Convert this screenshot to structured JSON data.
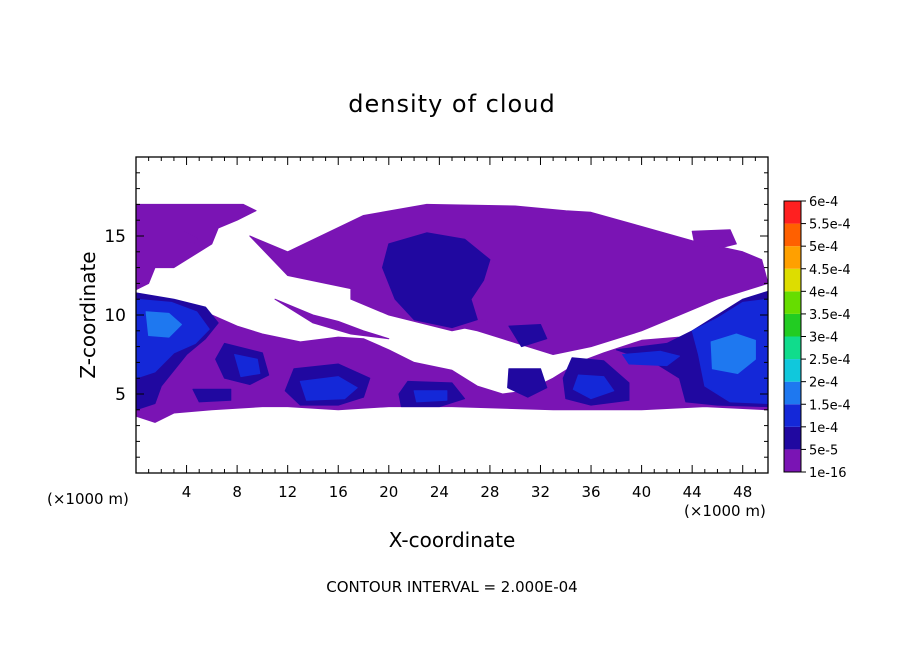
{
  "chart_data": {
    "type": "heatmap",
    "title": "density of cloud",
    "xlabel": "X-coordinate",
    "ylabel": "Z-coordinate",
    "x_unit": "(×1000 m)",
    "z_unit": "(×1000 m)",
    "xlim": [
      0,
      50
    ],
    "ylim": [
      0,
      20
    ],
    "x_ticks": [
      4,
      8,
      12,
      16,
      20,
      24,
      28,
      32,
      36,
      40,
      44,
      48
    ],
    "x_tick_labels": [
      "4",
      "8",
      "12",
      "16",
      "20",
      "24",
      "28",
      "32",
      "36",
      "40",
      "44",
      "48"
    ],
    "y_ticks": [
      5,
      10,
      15
    ],
    "y_tick_labels": [
      "5",
      "10",
      "15"
    ],
    "footer": "CONTOUR INTERVAL = 2.000E-04",
    "colorbar": {
      "levels": [
        "1e-16",
        "5e-5",
        "1e-4",
        "1.5e-4",
        "2e-4",
        "2.5e-4",
        "3e-4",
        "3.5e-4",
        "4e-4",
        "4.5e-4",
        "5e-4",
        "5.5e-4",
        "6e-4"
      ],
      "colors": [
        "#7a14b4",
        "#2008a0",
        "#1428d8",
        "#1e78f0",
        "#10c8dc",
        "#10dc8c",
        "#22cc22",
        "#66dd00",
        "#dddd00",
        "#ffa000",
        "#ff6000",
        "#ff2020",
        "#ff8080"
      ]
    },
    "regions": [
      {
        "level": 0,
        "points": [
          [
            0,
            17
          ],
          [
            8.5,
            17
          ],
          [
            9.5,
            16.6
          ],
          [
            8,
            16
          ],
          [
            6.5,
            15.5
          ],
          [
            6,
            14.5
          ],
          [
            5,
            14
          ],
          [
            3,
            13
          ],
          [
            1.5,
            13
          ],
          [
            1,
            12
          ],
          [
            0,
            11.6
          ]
        ]
      },
      {
        "level": 0,
        "points": [
          [
            9,
            15
          ],
          [
            12,
            14
          ],
          [
            18,
            16.3
          ],
          [
            23,
            17
          ],
          [
            30,
            16.9
          ],
          [
            34,
            16.6
          ],
          [
            36,
            16.5
          ],
          [
            40,
            15.6
          ],
          [
            44,
            14.7
          ],
          [
            48,
            14
          ],
          [
            49.5,
            13.5
          ],
          [
            50,
            12
          ],
          [
            46,
            11
          ],
          [
            43,
            10
          ],
          [
            40,
            9
          ],
          [
            36,
            8
          ],
          [
            33,
            7.5
          ],
          [
            31,
            8
          ],
          [
            29,
            8.5
          ],
          [
            27,
            9
          ],
          [
            24,
            9.5
          ],
          [
            21,
            10.5
          ],
          [
            18,
            11.5
          ],
          [
            15,
            12
          ],
          [
            12,
            12.5
          ]
        ]
      },
      {
        "level": 0,
        "points": [
          [
            0,
            11
          ],
          [
            3,
            10.7
          ],
          [
            6,
            10
          ],
          [
            8,
            9.3
          ],
          [
            10,
            8.8
          ],
          [
            13,
            8.3
          ],
          [
            16,
            8.6
          ],
          [
            18,
            8.5
          ],
          [
            20,
            7.8
          ],
          [
            22,
            7
          ],
          [
            25,
            6.5
          ],
          [
            27,
            5.5
          ],
          [
            29,
            5
          ],
          [
            31,
            5.2
          ],
          [
            33,
            6
          ],
          [
            35,
            7
          ],
          [
            37,
            7.6
          ],
          [
            40,
            8.4
          ],
          [
            43,
            8.6
          ],
          [
            46,
            9
          ],
          [
            48,
            10.2
          ],
          [
            50,
            11
          ],
          [
            50,
            4
          ],
          [
            45,
            4.2
          ],
          [
            40,
            4
          ],
          [
            33,
            4
          ],
          [
            25,
            4.2
          ],
          [
            20,
            4.2
          ],
          [
            16,
            4
          ],
          [
            12,
            4.2
          ],
          [
            10,
            4.2
          ],
          [
            6,
            4
          ],
          [
            3,
            3.8
          ],
          [
            1.5,
            3.2
          ],
          [
            0,
            3.6
          ]
        ]
      },
      {
        "level": 0,
        "points": [
          [
            17,
            12
          ],
          [
            22,
            11.5
          ],
          [
            25,
            10.5
          ],
          [
            28,
            9.5
          ],
          [
            25,
            9
          ],
          [
            20,
            10
          ],
          [
            17,
            11
          ]
        ]
      },
      {
        "level": 0,
        "points": [
          [
            11,
            11
          ],
          [
            14,
            10
          ],
          [
            16,
            9.6
          ],
          [
            18,
            9
          ],
          [
            20,
            8.5
          ],
          [
            17,
            8.8
          ],
          [
            14,
            9.5
          ]
        ]
      },
      {
        "level": 0,
        "points": [
          [
            3.5,
            15.4
          ],
          [
            5,
            14.8
          ],
          [
            4.5,
            14.5
          ],
          [
            3.3,
            14.8
          ]
        ]
      },
      {
        "level": 0,
        "points": [
          [
            44,
            15.3
          ],
          [
            47,
            15.4
          ],
          [
            47.5,
            14.5
          ],
          [
            46,
            14.2
          ],
          [
            44.2,
            14.5
          ]
        ]
      },
      {
        "level": 1,
        "points": [
          [
            20,
            14.5
          ],
          [
            23,
            15.2
          ],
          [
            26,
            14.8
          ],
          [
            28,
            13.5
          ],
          [
            27.5,
            12.2
          ],
          [
            26.5,
            11
          ],
          [
            27,
            9.7
          ],
          [
            25,
            9.2
          ],
          [
            22,
            9.7
          ],
          [
            20.5,
            11
          ],
          [
            19.5,
            13
          ]
        ]
      },
      {
        "level": 1,
        "points": [
          [
            7,
            8.2
          ],
          [
            10,
            7.6
          ],
          [
            10.5,
            6.2
          ],
          [
            9,
            5.6
          ],
          [
            7,
            6
          ],
          [
            6.3,
            7.2
          ]
        ]
      },
      {
        "level": 1,
        "points": [
          [
            12.5,
            6.6
          ],
          [
            16,
            6.9
          ],
          [
            18.5,
            6
          ],
          [
            18,
            4.8
          ],
          [
            16,
            4.3
          ],
          [
            13,
            4.3
          ],
          [
            11.8,
            5.2
          ]
        ]
      },
      {
        "level": 1,
        "points": [
          [
            34.5,
            7.3
          ],
          [
            37,
            7.1
          ],
          [
            39,
            5.7
          ],
          [
            39,
            4.6
          ],
          [
            36,
            4.3
          ],
          [
            34,
            4.7
          ],
          [
            33.8,
            6
          ]
        ]
      },
      {
        "level": 1,
        "points": [
          [
            21.5,
            5.8
          ],
          [
            25,
            5.7
          ],
          [
            26,
            4.7
          ],
          [
            24,
            4.2
          ],
          [
            21,
            4.2
          ],
          [
            20.8,
            5
          ]
        ]
      },
      {
        "level": 1,
        "points": [
          [
            4.5,
            5.3
          ],
          [
            7.5,
            5.3
          ],
          [
            7.5,
            4.6
          ],
          [
            5,
            4.5
          ]
        ]
      },
      {
        "level": 1,
        "points": [
          [
            29.5,
            6.6
          ],
          [
            32,
            6.6
          ],
          [
            32.5,
            5.4
          ],
          [
            31,
            4.8
          ],
          [
            29.4,
            5.4
          ]
        ]
      },
      {
        "level": 1,
        "points": [
          [
            29.5,
            9.3
          ],
          [
            32,
            9.4
          ],
          [
            32.5,
            8.5
          ],
          [
            30.5,
            8
          ]
        ]
      },
      {
        "level": 1,
        "points": [
          [
            38,
            7.8
          ],
          [
            42,
            8.2
          ],
          [
            44,
            9
          ],
          [
            46,
            10
          ],
          [
            48,
            11
          ],
          [
            50,
            11.5
          ],
          [
            50,
            4.2
          ],
          [
            46,
            4.3
          ],
          [
            43.5,
            4.5
          ],
          [
            43,
            6
          ],
          [
            41,
            7
          ]
        ]
      },
      {
        "level": 1,
        "points": [
          [
            0,
            11.4
          ],
          [
            3,
            11
          ],
          [
            5.5,
            10.5
          ],
          [
            6.5,
            9.5
          ],
          [
            5.5,
            8.5
          ],
          [
            4,
            7.5
          ],
          [
            2,
            5.5
          ],
          [
            1.5,
            4.4
          ],
          [
            0,
            4
          ]
        ]
      },
      {
        "level": 2,
        "points": [
          [
            0,
            11
          ],
          [
            2.8,
            10.8
          ],
          [
            4.8,
            10.2
          ],
          [
            5.8,
            9.1
          ],
          [
            4.7,
            8.2
          ],
          [
            3,
            7.6
          ],
          [
            1.5,
            6.4
          ],
          [
            0,
            6
          ]
        ]
      },
      {
        "level": 2,
        "points": [
          [
            44,
            9
          ],
          [
            46,
            9.8
          ],
          [
            48,
            10.8
          ],
          [
            50,
            11
          ],
          [
            50,
            4.4
          ],
          [
            47,
            4.5
          ],
          [
            45,
            5.5
          ],
          [
            44.5,
            7.5
          ]
        ]
      },
      {
        "level": 2,
        "points": [
          [
            13,
            5.8
          ],
          [
            16,
            6.1
          ],
          [
            17.5,
            5.4
          ],
          [
            16.5,
            4.7
          ],
          [
            13.5,
            4.6
          ]
        ]
      },
      {
        "level": 2,
        "points": [
          [
            7.8,
            7.5
          ],
          [
            9.6,
            7.2
          ],
          [
            9.8,
            6.3
          ],
          [
            8.3,
            6.1
          ]
        ]
      },
      {
        "level": 2,
        "points": [
          [
            35,
            6.2
          ],
          [
            37,
            6.1
          ],
          [
            37.8,
            5.2
          ],
          [
            36,
            4.7
          ],
          [
            34.6,
            5.3
          ]
        ]
      },
      {
        "level": 2,
        "points": [
          [
            22,
            5.2
          ],
          [
            24.6,
            5.2
          ],
          [
            24.6,
            4.6
          ],
          [
            22.2,
            4.5
          ]
        ]
      },
      {
        "level": 2,
        "points": [
          [
            38.5,
            7.5
          ],
          [
            41.5,
            7.7
          ],
          [
            43,
            7.4
          ],
          [
            42,
            6.8
          ],
          [
            39,
            6.9
          ]
        ]
      },
      {
        "level": 3,
        "points": [
          [
            45.5,
            8.3
          ],
          [
            47.5,
            8.8
          ],
          [
            49,
            8.4
          ],
          [
            49,
            7.2
          ],
          [
            47.6,
            6.3
          ],
          [
            45.6,
            6.6
          ]
        ]
      },
      {
        "level": 3,
        "points": [
          [
            0.8,
            10.2
          ],
          [
            2.6,
            10.1
          ],
          [
            3.6,
            9.4
          ],
          [
            2.6,
            8.6
          ],
          [
            1,
            8.7
          ]
        ]
      }
    ]
  }
}
